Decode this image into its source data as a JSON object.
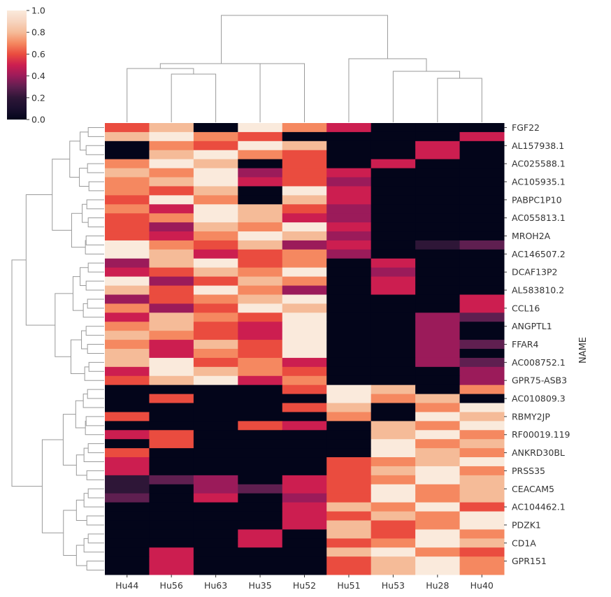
{
  "chart_data": {
    "type": "heatmap",
    "subtype": "clustermap",
    "title": "",
    "xlabel": "",
    "ylabel": "NAME",
    "colormap": "rocket",
    "colorbar": {
      "range": [
        0.0,
        1.0
      ],
      "ticks": [
        "0.0",
        "0.2",
        "0.4",
        "0.6",
        "0.8",
        "1.0"
      ],
      "placement": "top-left"
    },
    "row_dendrogram": true,
    "col_dendrogram": true,
    "columns": [
      "Hu44",
      "Hu56",
      "Hu63",
      "Hu35",
      "Hu52",
      "Hu51",
      "Hu53",
      "Hu28",
      "Hu40"
    ],
    "row_labels_shown": [
      "FGF22",
      "AL157938.1",
      "AC025588.1",
      "AC105935.1",
      "PABPC1P10",
      "AC055813.1",
      "MROH2A",
      "AC146507.2",
      "DCAF13P2",
      "AL583810.2",
      "CCL16",
      "ANGPTL1",
      "FFAR4",
      "AC008752.1",
      "GPR75-ASB3",
      "AC010809.3",
      "RBMY2JP",
      "RF00019.119",
      "ANKRD30BL",
      "PRSS35",
      "CEACAM5",
      "AC104462.1",
      "PDZK1",
      "CD1A",
      "GPR151"
    ],
    "values": [
      [
        0.6,
        0.8,
        0,
        1,
        0.7,
        0.5,
        0,
        0,
        0
      ],
      [
        0.8,
        1,
        0.7,
        0.6,
        0,
        0,
        0,
        0,
        0.5
      ],
      [
        0,
        0.7,
        0.6,
        1,
        0.8,
        0,
        0,
        0.5,
        0
      ],
      [
        0,
        0.8,
        1,
        0.7,
        0.6,
        0,
        0,
        0.5,
        0
      ],
      [
        0.7,
        1,
        0.8,
        0,
        0.6,
        0,
        0.5,
        0,
        0
      ],
      [
        0.8,
        0.7,
        1,
        0.4,
        0.6,
        0.5,
        0,
        0,
        0
      ],
      [
        0.7,
        0.8,
        1,
        0.5,
        0.6,
        0.4,
        0,
        0,
        0
      ],
      [
        0.7,
        0.6,
        0.8,
        0,
        1,
        0.5,
        0,
        0,
        0
      ],
      [
        0.6,
        1,
        0.7,
        0,
        0.8,
        0.5,
        0,
        0,
        0
      ],
      [
        0.7,
        0.5,
        1,
        0.8,
        0.6,
        0.4,
        0,
        0,
        0
      ],
      [
        0.6,
        0.7,
        1,
        0.8,
        0.5,
        0.4,
        0,
        0,
        0
      ],
      [
        0.6,
        0.4,
        0.8,
        0.7,
        1,
        0.5,
        0,
        0,
        0
      ],
      [
        0.6,
        0.5,
        0.7,
        1,
        0.8,
        0.4,
        0,
        0,
        0
      ],
      [
        1,
        0.7,
        0.6,
        0.8,
        0.4,
        0.5,
        0,
        0.2,
        0.3
      ],
      [
        1,
        0.8,
        0.5,
        0.6,
        0.7,
        0.4,
        0,
        0,
        0
      ],
      [
        0.4,
        0.8,
        1,
        0.6,
        0.7,
        0,
        0.5,
        0,
        0
      ],
      [
        0.5,
        0.6,
        0.8,
        0.7,
        1,
        0,
        0.4,
        0,
        0
      ],
      [
        1,
        0.4,
        0.6,
        0.8,
        0.7,
        0,
        0.5,
        0,
        0
      ],
      [
        0.8,
        0.6,
        1,
        0.7,
        0.4,
        0,
        0.5,
        0,
        0
      ],
      [
        0.4,
        0.6,
        0.7,
        0.8,
        1,
        0,
        0,
        0,
        0.5
      ],
      [
        0.7,
        0.4,
        0.6,
        1,
        0.8,
        0,
        0,
        0,
        0.5
      ],
      [
        0.5,
        0.8,
        0.7,
        0.6,
        1,
        0,
        0,
        0.4,
        0.3
      ],
      [
        0.7,
        0.8,
        0.6,
        0.5,
        1,
        0,
        0,
        0.4,
        0
      ],
      [
        0.8,
        0.7,
        0.6,
        0.5,
        1,
        0,
        0,
        0.4,
        0
      ],
      [
        0.7,
        0.5,
        0.8,
        0.6,
        1,
        0,
        0,
        0.4,
        0.3
      ],
      [
        0.8,
        0.5,
        0.7,
        0.6,
        1,
        0,
        0,
        0.4,
        0
      ],
      [
        0.8,
        1,
        0.6,
        0.7,
        0.5,
        0,
        0,
        0.4,
        0.3
      ],
      [
        0.5,
        1,
        0.8,
        0.7,
        0.6,
        0,
        0,
        0,
        0.4
      ],
      [
        0.6,
        0.8,
        1,
        0.5,
        0.7,
        0,
        0,
        0,
        0.4
      ],
      [
        0,
        0,
        0,
        0,
        0.6,
        1,
        0.8,
        0,
        0.7
      ],
      [
        0,
        0.6,
        0,
        0,
        0,
        1,
        0.7,
        0.8,
        0
      ],
      [
        0,
        0,
        0,
        0,
        0.6,
        0.8,
        0,
        0.7,
        1
      ],
      [
        0.6,
        0,
        0,
        0,
        0,
        0.7,
        0,
        1,
        0.8
      ],
      [
        0,
        0,
        0,
        0.6,
        0.5,
        0,
        0.8,
        0.7,
        1
      ],
      [
        0.5,
        0.6,
        0,
        0,
        0,
        0,
        0.8,
        1,
        0.7
      ],
      [
        0,
        0.6,
        0,
        0,
        0,
        0,
        1,
        0.7,
        0.8
      ],
      [
        0.6,
        0,
        0,
        0,
        0,
        0,
        1,
        0.8,
        0.7
      ],
      [
        0.5,
        0,
        0,
        0,
        0,
        0.6,
        0.7,
        0.8,
        1
      ],
      [
        0.5,
        0,
        0,
        0,
        0,
        0.6,
        0.8,
        1,
        0.7
      ],
      [
        0.2,
        0.3,
        0.4,
        0,
        0.5,
        0.6,
        0.7,
        1,
        0.8
      ],
      [
        0.2,
        0,
        0.4,
        0.3,
        0.5,
        0.6,
        1,
        0.7,
        0.8
      ],
      [
        0.3,
        0,
        0.5,
        0,
        0.4,
        0.6,
        1,
        0.7,
        0.8
      ],
      [
        0,
        0,
        0,
        0,
        0.5,
        0.8,
        0.7,
        1,
        0.6
      ],
      [
        0,
        0,
        0,
        0,
        0.5,
        0.6,
        0.8,
        0.7,
        1
      ],
      [
        0,
        0,
        0,
        0,
        0.5,
        0.8,
        0.6,
        0.7,
        1
      ],
      [
        0,
        0,
        0,
        0.5,
        0,
        0.8,
        0.6,
        1,
        0.7
      ],
      [
        0,
        0,
        0,
        0.5,
        0,
        0.6,
        0.7,
        1,
        0.8
      ],
      [
        0,
        0.5,
        0,
        0,
        0,
        0.8,
        1,
        0.7,
        0.6
      ],
      [
        0,
        0.5,
        0,
        0,
        0,
        0.6,
        0.8,
        1,
        0.7
      ],
      [
        0,
        0.5,
        0,
        0,
        0,
        0.6,
        0.8,
        1,
        0.7
      ]
    ]
  }
}
